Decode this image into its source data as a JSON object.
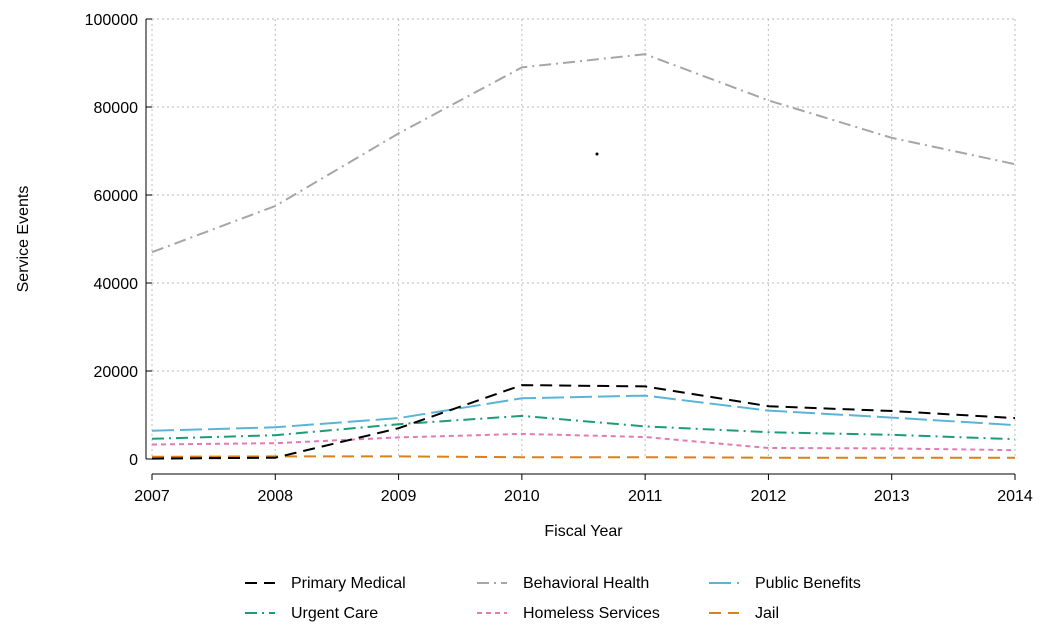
{
  "chart_data": {
    "type": "line",
    "title": "",
    "xlabel": "Fiscal Year",
    "ylabel": "Service Events",
    "x": [
      2007,
      2008,
      2009,
      2010,
      2011,
      2012,
      2013,
      2014
    ],
    "xlim": [
      2007,
      2014
    ],
    "ylim": [
      0,
      100000
    ],
    "yticks": [
      0,
      20000,
      40000,
      60000,
      80000,
      100000
    ],
    "grid": true,
    "legend_position": "bottom",
    "series": [
      {
        "name": "Primary Medical",
        "color": "#000000",
        "dash": "long-dash",
        "values": [
          100,
          300,
          7000,
          16800,
          16500,
          12000,
          10900,
          9300
        ]
      },
      {
        "name": "Behavioral Health",
        "color": "#a6a6a6",
        "dash": "dash-dot",
        "values": [
          47000,
          57500,
          74000,
          89000,
          92000,
          81500,
          73000,
          67000
        ]
      },
      {
        "name": "Public Benefits",
        "color": "#5ab4d6",
        "dash": "long-dash-light",
        "values": [
          6400,
          7200,
          9300,
          13800,
          14400,
          11000,
          9400,
          7700
        ]
      },
      {
        "name": "Urgent Care",
        "color": "#1b9e77",
        "dash": "dash-dot",
        "values": [
          4600,
          5400,
          7900,
          9800,
          7400,
          6100,
          5500,
          4500
        ]
      },
      {
        "name": "Homeless Services",
        "color": "#e07bb7",
        "dash": "short-dash",
        "values": [
          3300,
          3600,
          4900,
          5700,
          5000,
          2500,
          2400,
          2000
        ]
      },
      {
        "name": "Jail",
        "color": "#d9821c",
        "dash": "long-dash",
        "values": [
          500,
          600,
          600,
          400,
          400,
          300,
          300,
          300
        ]
      }
    ]
  }
}
